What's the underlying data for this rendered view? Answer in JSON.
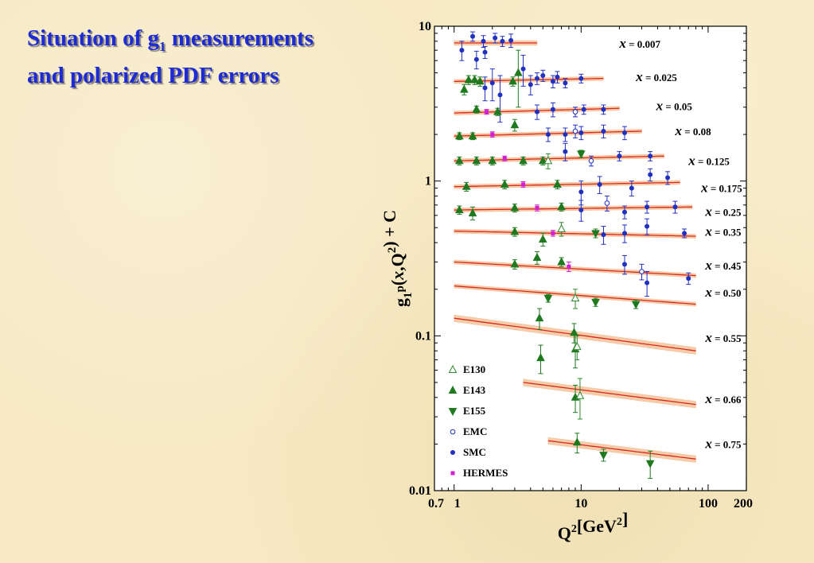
{
  "slide": {
    "title_line1_pre": "Situation of g",
    "title_line1_sub": "1",
    "title_line1_post": " measurements",
    "title_line2": "and polarized PDF errors"
  },
  "chart_data": {
    "type": "scatter",
    "title": "",
    "xlabel": "Q²[GeV²]",
    "ylabel": "g₁ᵖ(x,Q²) + C",
    "xscale": "log",
    "yscale": "log",
    "xlim": [
      0.7,
      200
    ],
    "ylim": [
      0.01,
      10
    ],
    "x_tick_labels": [
      {
        "value": 0.7,
        "label": "0.7"
      },
      {
        "value": 1,
        "label": "1"
      },
      {
        "value": 10,
        "label": "10"
      },
      {
        "value": 100,
        "label": "100"
      },
      {
        "value": 200,
        "label": "200"
      }
    ],
    "y_tick_labels": [
      {
        "value": 0.01,
        "label": "0.01"
      },
      {
        "value": 0.1,
        "label": "0.1"
      },
      {
        "value": 1,
        "label": "1"
      },
      {
        "value": 10,
        "label": "10"
      }
    ],
    "legend_placement": "bottom-left",
    "legend": [
      {
        "name": "E130",
        "marker": "triangle-up-open",
        "color": "#2f8a2f"
      },
      {
        "name": "E143",
        "marker": "triangle-up",
        "color": "#1f7a1f"
      },
      {
        "name": "E155",
        "marker": "triangle-down",
        "color": "#1f7a1f"
      },
      {
        "name": "EMC",
        "marker": "circle-open",
        "color": "#2030c0"
      },
      {
        "name": "SMC",
        "marker": "circle",
        "color": "#2030c0"
      },
      {
        "name": "HERMES",
        "marker": "square",
        "color": "#d020d0"
      }
    ],
    "colors": {
      "fit_line": "#d9281e",
      "error_band": "#f5c8a0"
    },
    "bins": [
      {
        "label_prefix": "x",
        "label_value": " = 0.007",
        "label_anchor": [
          20,
          7.7
        ],
        "band": {
          "x": [
            1,
            4.5
          ],
          "y": [
            7.8,
            7.8
          ],
          "width": 0.035
        },
        "points": [
          {
            "set": "SMC",
            "x": 1.15,
            "y": 7.0,
            "err": 1.0
          },
          {
            "set": "SMC",
            "x": 1.4,
            "y": 8.6,
            "err": 0.6
          },
          {
            "set": "SMC",
            "x": 1.5,
            "y": 6.1,
            "err": 0.8
          },
          {
            "set": "SMC",
            "x": 1.7,
            "y": 8.0,
            "err": 0.7
          },
          {
            "set": "SMC",
            "x": 1.75,
            "y": 6.8,
            "err": 0.6
          },
          {
            "set": "SMC",
            "x": 2.1,
            "y": 8.4,
            "err": 0.6
          },
          {
            "set": "SMC",
            "x": 2.4,
            "y": 8.0,
            "err": 0.6
          },
          {
            "set": "SMC",
            "x": 2.8,
            "y": 8.1,
            "err": 0.8
          }
        ]
      },
      {
        "label_prefix": "x",
        "label_value": " = 0.025",
        "label_anchor": [
          27,
          4.7
        ],
        "band": {
          "x": [
            1,
            15
          ],
          "y": [
            4.4,
            4.6
          ],
          "width": 0.03
        },
        "points": [
          {
            "set": "E143",
            "x": 1.2,
            "y": 3.9,
            "err": 0.3
          },
          {
            "set": "E143",
            "x": 1.3,
            "y": 4.5,
            "err": 0.3
          },
          {
            "set": "E143",
            "x": 1.45,
            "y": 4.5,
            "err": 0.3
          },
          {
            "set": "E143",
            "x": 1.6,
            "y": 4.4,
            "err": 0.3
          },
          {
            "set": "SMC",
            "x": 1.75,
            "y": 4.0,
            "err": 0.7
          },
          {
            "set": "SMC",
            "x": 2.0,
            "y": 4.3,
            "err": 1.0
          },
          {
            "set": "SMC",
            "x": 2.3,
            "y": 3.6,
            "err": 1.2
          },
          {
            "set": "E143",
            "x": 2.9,
            "y": 4.4,
            "err": 0.3
          },
          {
            "set": "E143",
            "x": 3.2,
            "y": 5.0,
            "err": 2.0
          },
          {
            "set": "SMC",
            "x": 3.5,
            "y": 5.3,
            "err": 1.2
          },
          {
            "set": "SMC",
            "x": 4.0,
            "y": 4.2,
            "err": 0.6
          },
          {
            "set": "SMC",
            "x": 4.5,
            "y": 4.6,
            "err": 0.4
          },
          {
            "set": "SMC",
            "x": 5.0,
            "y": 4.8,
            "err": 0.4
          },
          {
            "set": "SMC",
            "x": 6.0,
            "y": 4.4,
            "err": 0.4
          },
          {
            "set": "SMC",
            "x": 6.5,
            "y": 4.7,
            "err": 0.4
          },
          {
            "set": "SMC",
            "x": 7.5,
            "y": 4.3,
            "err": 0.3
          },
          {
            "set": "SMC",
            "x": 10.0,
            "y": 4.6,
            "err": 0.3
          }
        ]
      },
      {
        "label_prefix": "x",
        "label_value": " = 0.05",
        "label_anchor": [
          39,
          3.05
        ],
        "band": {
          "x": [
            1,
            20
          ],
          "y": [
            2.75,
            2.95
          ],
          "width": 0.03
        },
        "points": [
          {
            "set": "E143",
            "x": 1.5,
            "y": 2.9,
            "err": 0.15
          },
          {
            "set": "HERMES",
            "x": 1.8,
            "y": 2.8,
            "err": 0.1
          },
          {
            "set": "E143",
            "x": 2.2,
            "y": 2.8,
            "err": 0.15
          },
          {
            "set": "SMC",
            "x": 4.5,
            "y": 2.8,
            "err": 0.3
          },
          {
            "set": "SMC",
            "x": 6.0,
            "y": 2.9,
            "err": 0.3
          },
          {
            "set": "EMC",
            "x": 9.0,
            "y": 2.8,
            "err": 0.2
          },
          {
            "set": "SMC",
            "x": 10.5,
            "y": 2.9,
            "err": 0.2
          },
          {
            "set": "SMC",
            "x": 15.0,
            "y": 2.9,
            "err": 0.2
          }
        ]
      },
      {
        "label_prefix": "x",
        "label_value": " = 0.08",
        "label_anchor": [
          55,
          2.1
        ],
        "band": {
          "x": [
            1,
            30
          ],
          "y": [
            1.95,
            2.1
          ],
          "width": 0.03
        },
        "points": [
          {
            "set": "E143",
            "x": 1.1,
            "y": 1.95,
            "err": 0.1
          },
          {
            "set": "E143",
            "x": 1.4,
            "y": 1.95,
            "err": 0.1
          },
          {
            "set": "HERMES",
            "x": 2.0,
            "y": 2.0,
            "err": 0.08
          },
          {
            "set": "E143",
            "x": 3.0,
            "y": 2.3,
            "err": 0.2
          },
          {
            "set": "SMC",
            "x": 5.5,
            "y": 2.0,
            "err": 0.2
          },
          {
            "set": "SMC",
            "x": 7.5,
            "y": 2.0,
            "err": 0.2
          },
          {
            "set": "EMC",
            "x": 9.0,
            "y": 2.1,
            "err": 0.2
          },
          {
            "set": "SMC",
            "x": 10.0,
            "y": 2.05,
            "err": 0.2
          },
          {
            "set": "SMC",
            "x": 15.0,
            "y": 2.1,
            "err": 0.2
          },
          {
            "set": "SMC",
            "x": 22.0,
            "y": 2.05,
            "err": 0.2
          }
        ]
      },
      {
        "label_prefix": "x",
        "label_value": " = 0.125",
        "label_anchor": [
          70,
          1.35
        ],
        "band": {
          "x": [
            1,
            45
          ],
          "y": [
            1.35,
            1.45
          ],
          "width": 0.03
        },
        "points": [
          {
            "set": "E143",
            "x": 1.1,
            "y": 1.35,
            "err": 0.08
          },
          {
            "set": "E143",
            "x": 1.5,
            "y": 1.35,
            "err": 0.08
          },
          {
            "set": "E143",
            "x": 2.0,
            "y": 1.35,
            "err": 0.08
          },
          {
            "set": "HERMES",
            "x": 2.5,
            "y": 1.4,
            "err": 0.05
          },
          {
            "set": "E143",
            "x": 3.5,
            "y": 1.35,
            "err": 0.08
          },
          {
            "set": "E143",
            "x": 5.0,
            "y": 1.35,
            "err": 0.08
          },
          {
            "set": "SMC",
            "x": 7.5,
            "y": 1.55,
            "err": 0.2
          },
          {
            "set": "E155",
            "x": 10.0,
            "y": 1.5,
            "err": 0.08
          },
          {
            "set": "EMC",
            "x": 12.0,
            "y": 1.35,
            "err": 0.1
          },
          {
            "set": "SMC",
            "x": 20.0,
            "y": 1.45,
            "err": 0.1
          },
          {
            "set": "SMC",
            "x": 35.0,
            "y": 1.45,
            "err": 0.1
          }
        ]
      },
      {
        "label_prefix": "x",
        "label_value": " = 0.175",
        "label_anchor": [
          88,
          0.9
        ],
        "band": {
          "x": [
            1,
            60
          ],
          "y": [
            0.92,
            0.98
          ],
          "width": 0.03
        },
        "points": [
          {
            "set": "E143",
            "x": 1.25,
            "y": 0.92,
            "err": 0.06
          },
          {
            "set": "E143",
            "x": 2.5,
            "y": 0.95,
            "err": 0.06
          },
          {
            "set": "HERMES",
            "x": 3.5,
            "y": 0.95,
            "err": 0.04
          },
          {
            "set": "E130",
            "x": 5.5,
            "y": 1.35,
            "err": 0.15
          },
          {
            "set": "E143",
            "x": 6.5,
            "y": 0.95,
            "err": 0.06
          },
          {
            "set": "SMC",
            "x": 10.0,
            "y": 0.85,
            "err": 0.15
          },
          {
            "set": "SMC",
            "x": 14.0,
            "y": 0.95,
            "err": 0.12
          },
          {
            "set": "SMC",
            "x": 25.0,
            "y": 0.9,
            "err": 0.1
          },
          {
            "set": "SMC",
            "x": 35.0,
            "y": 1.1,
            "err": 0.1
          },
          {
            "set": "SMC",
            "x": 48.0,
            "y": 1.05,
            "err": 0.1
          }
        ]
      },
      {
        "label_prefix": "x",
        "label_value": " = 0.25",
        "label_anchor": [
          95,
          0.63
        ],
        "band": {
          "x": [
            1,
            75
          ],
          "y": [
            0.65,
            0.68
          ],
          "width": 0.03
        },
        "points": [
          {
            "set": "E143",
            "x": 1.1,
            "y": 0.65,
            "err": 0.04
          },
          {
            "set": "E143",
            "x": 1.4,
            "y": 0.62,
            "err": 0.06
          },
          {
            "set": "E143",
            "x": 3.0,
            "y": 0.67,
            "err": 0.04
          },
          {
            "set": "HERMES",
            "x": 4.5,
            "y": 0.67,
            "err": 0.03
          },
          {
            "set": "E143",
            "x": 7.0,
            "y": 0.68,
            "err": 0.04
          },
          {
            "set": "SMC",
            "x": 10.0,
            "y": 0.65,
            "err": 0.1
          },
          {
            "set": "EMC",
            "x": 16.0,
            "y": 0.72,
            "err": 0.08
          },
          {
            "set": "SMC",
            "x": 22.0,
            "y": 0.63,
            "err": 0.06
          },
          {
            "set": "SMC",
            "x": 33.0,
            "y": 0.68,
            "err": 0.06
          },
          {
            "set": "SMC",
            "x": 55.0,
            "y": 0.68,
            "err": 0.06
          }
        ]
      },
      {
        "label_prefix": "x",
        "label_value": " = 0.35",
        "label_anchor": [
          95,
          0.47
        ],
        "band": {
          "x": [
            1,
            80
          ],
          "y": [
            0.475,
            0.44
          ],
          "width": 0.03
        },
        "points": [
          {
            "set": "E143",
            "x": 3.0,
            "y": 0.47,
            "err": 0.03
          },
          {
            "set": "E143",
            "x": 5.0,
            "y": 0.42,
            "err": 0.04
          },
          {
            "set": "HERMES",
            "x": 6.0,
            "y": 0.46,
            "err": 0.02
          },
          {
            "set": "E130",
            "x": 7.0,
            "y": 0.49,
            "err": 0.05
          },
          {
            "set": "E155",
            "x": 13.0,
            "y": 0.46,
            "err": 0.03
          },
          {
            "set": "SMC",
            "x": 15.0,
            "y": 0.45,
            "err": 0.06
          },
          {
            "set": "SMC",
            "x": 22.0,
            "y": 0.46,
            "err": 0.06
          },
          {
            "set": "SMC",
            "x": 33.0,
            "y": 0.51,
            "err": 0.06
          },
          {
            "set": "SMC",
            "x": 65.0,
            "y": 0.46,
            "err": 0.03
          }
        ]
      },
      {
        "label_prefix": "x",
        "label_value": " = 0.45",
        "label_anchor": [
          95,
          0.285
        ],
        "band": {
          "x": [
            1,
            80
          ],
          "y": [
            0.3,
            0.245
          ],
          "width": 0.03
        },
        "points": [
          {
            "set": "E143",
            "x": 3.0,
            "y": 0.29,
            "err": 0.02
          },
          {
            "set": "E143",
            "x": 4.5,
            "y": 0.32,
            "err": 0.03
          },
          {
            "set": "E143",
            "x": 7.0,
            "y": 0.3,
            "err": 0.02
          },
          {
            "set": "HERMES",
            "x": 8.0,
            "y": 0.28,
            "err": 0.02
          },
          {
            "set": "SMC",
            "x": 22.0,
            "y": 0.29,
            "err": 0.04
          },
          {
            "set": "EMC",
            "x": 30.0,
            "y": 0.26,
            "err": 0.03
          },
          {
            "set": "SMC",
            "x": 33.0,
            "y": 0.22,
            "err": 0.04
          },
          {
            "set": "SMC",
            "x": 70.0,
            "y": 0.235,
            "err": 0.02
          }
        ]
      },
      {
        "label_prefix": "x",
        "label_value": " = 0.50",
        "label_anchor": [
          95,
          0.19
        ],
        "band": {
          "x": [
            1,
            80
          ],
          "y": [
            0.21,
            0.16
          ],
          "width": 0.03
        },
        "points": [
          {
            "set": "E155",
            "x": 5.5,
            "y": 0.175,
            "err": 0.01
          },
          {
            "set": "E130",
            "x": 9.0,
            "y": 0.175,
            "err": 0.025
          },
          {
            "set": "E155",
            "x": 13.0,
            "y": 0.165,
            "err": 0.01
          },
          {
            "set": "E155",
            "x": 27.0,
            "y": 0.16,
            "err": 0.01
          }
        ]
      },
      {
        "label_prefix": "x",
        "label_value": " = 0.55",
        "label_anchor": [
          95,
          0.097
        ],
        "band": {
          "x": [
            1,
            80
          ],
          "y": [
            0.13,
            0.08
          ],
          "width": 0.05
        },
        "points": [
          {
            "set": "E143",
            "x": 4.7,
            "y": 0.13,
            "err": 0.02
          },
          {
            "set": "E143",
            "x": 4.8,
            "y": 0.072,
            "err": 0.015
          },
          {
            "set": "E143",
            "x": 8.8,
            "y": 0.105,
            "err": 0.015
          },
          {
            "set": "E143",
            "x": 9.0,
            "y": 0.082,
            "err": 0.02
          },
          {
            "set": "E130",
            "x": 9.3,
            "y": 0.085,
            "err": 0.015
          }
        ]
      },
      {
        "label_prefix": "x",
        "label_value": " = 0.66",
        "label_anchor": [
          95,
          0.039
        ],
        "band": {
          "x": [
            3.5,
            80
          ],
          "y": [
            0.05,
            0.036
          ],
          "width": 0.05
        },
        "points": [
          {
            "set": "E143",
            "x": 9.0,
            "y": 0.04,
            "err": 0.008
          },
          {
            "set": "E130",
            "x": 9.8,
            "y": 0.041,
            "err": 0.012
          }
        ]
      },
      {
        "label_prefix": "x",
        "label_value": " = 0.75",
        "label_anchor": [
          95,
          0.02
        ],
        "band": {
          "x": [
            5.5,
            80
          ],
          "y": [
            0.021,
            0.016
          ],
          "width": 0.05
        },
        "points": [
          {
            "set": "E143",
            "x": 9.3,
            "y": 0.0205,
            "err": 0.003
          },
          {
            "set": "E155",
            "x": 15.0,
            "y": 0.017,
            "err": 0.0015
          },
          {
            "set": "E155",
            "x": 35.0,
            "y": 0.015,
            "err": 0.003
          }
        ]
      }
    ]
  }
}
